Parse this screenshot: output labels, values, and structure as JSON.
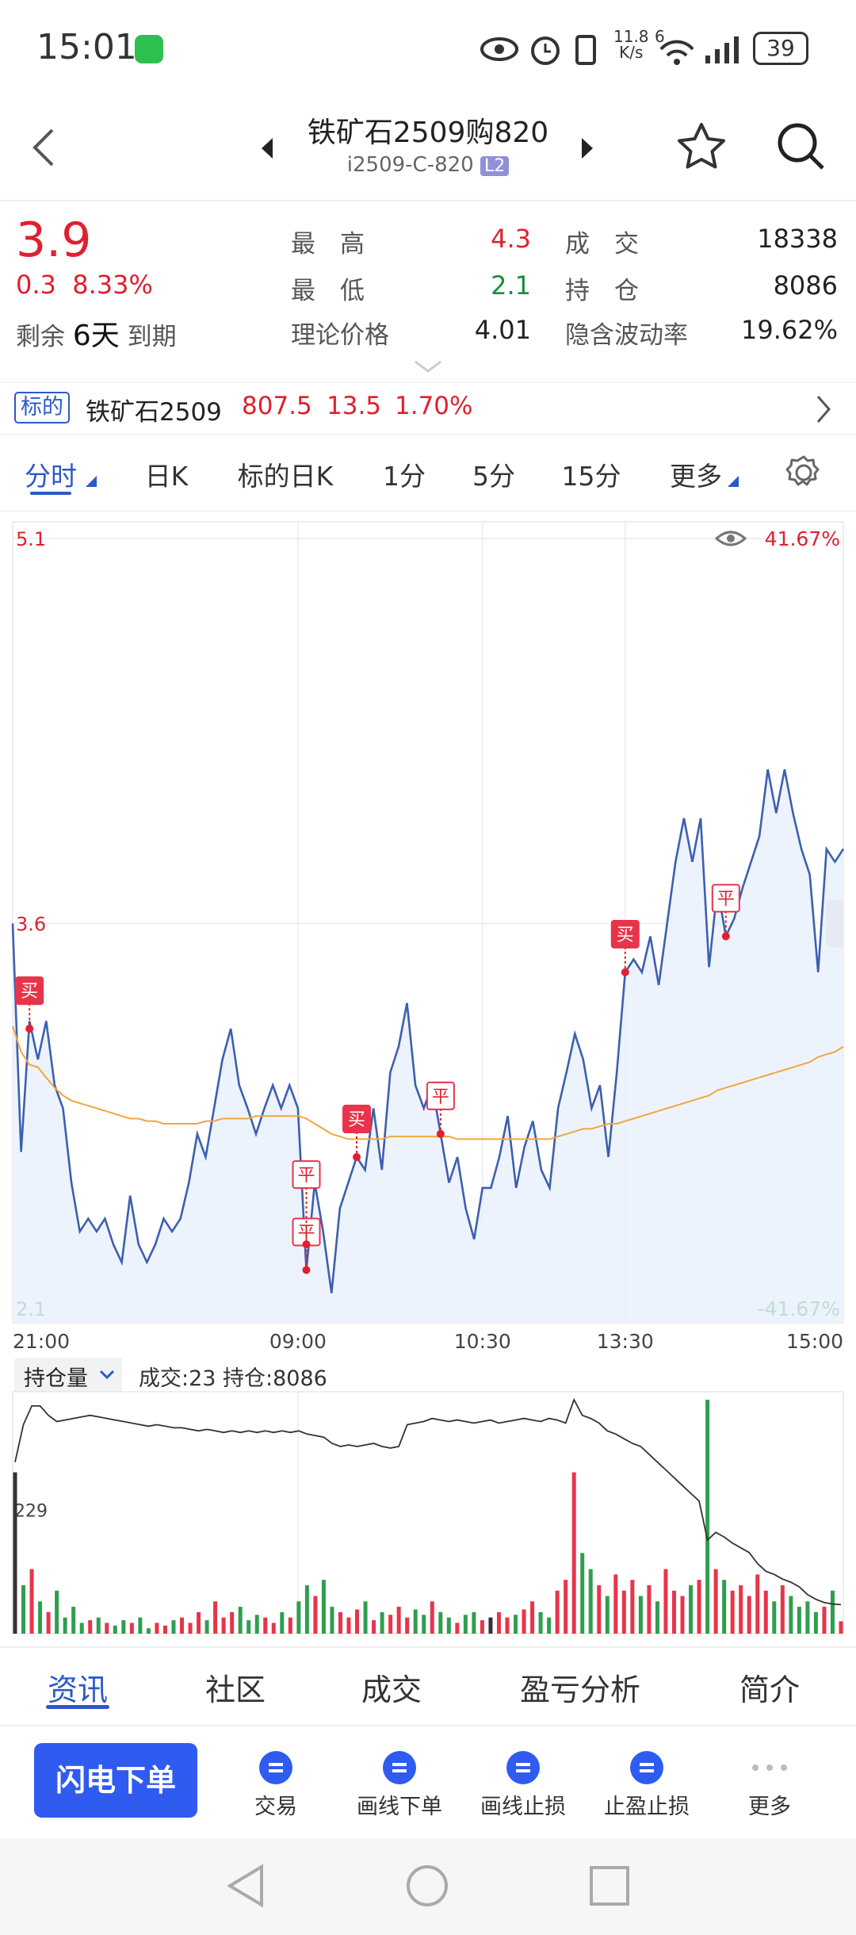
{
  "status_bar": {
    "time": "15:01",
    "speed": "11.8",
    "speed_unit": "K/s",
    "signal": "6",
    "battery": "39"
  },
  "header": {
    "title": "铁矿石2509购820",
    "code": "i2509-C-820",
    "badge": "L2"
  },
  "quote": {
    "price": "3.9",
    "change": "0.3",
    "change_pct": "8.33%",
    "remain_label": "剩余",
    "remain_days": "6天",
    "remain_suffix": "到期",
    "stats": [
      {
        "label": "最　高",
        "value": "4.3",
        "color": "#e0202f"
      },
      {
        "label": "成　交",
        "value": "18338",
        "color": "#222222"
      },
      {
        "label": "最　低",
        "value": "2.1",
        "color": "#1f8a3c"
      },
      {
        "label": "持　仓",
        "value": "8086",
        "color": "#222222"
      },
      {
        "label": "理论价格",
        "value": "4.01",
        "color": "#222222"
      },
      {
        "label": "隐含波动率",
        "value": "19.62%",
        "color": "#222222"
      }
    ]
  },
  "underlying": {
    "tag": "标的",
    "name": "铁矿石2509",
    "price": "807.5",
    "change": "13.5",
    "change_pct": "1.70%"
  },
  "period_tabs": {
    "items": [
      "分时",
      "日K",
      "标的日K",
      "1分",
      "5分",
      "15分",
      "更多"
    ],
    "active": 0
  },
  "chart_data": [
    {
      "type": "line",
      "xlim": [
        0,
        99
      ],
      "xticks": [
        {
          "value": 0,
          "label": "21:00"
        },
        {
          "value": 34,
          "label": "09:00"
        },
        {
          "value": 56,
          "label": "10:30"
        },
        {
          "value": 73,
          "label": "13:30"
        },
        {
          "value": 99,
          "label": "15:00"
        }
      ],
      "ylim": [
        2.1,
        5.1
      ],
      "yticks": [
        2.1,
        3.6,
        5.1
      ],
      "y2lim": [
        -41.67,
        41.67
      ],
      "y2ticks": [
        {
          "value": -41.67,
          "label": "-41.67%"
        },
        {
          "value": 41.67,
          "label": "41.67%"
        }
      ],
      "grid": true,
      "series": [
        {
          "color": "#3d5fb0",
          "area": true,
          "values": [
            3.6,
            2.71,
            3.22,
            3.07,
            3.22,
            2.97,
            2.88,
            2.59,
            2.4,
            2.45,
            2.4,
            2.45,
            2.35,
            2.28,
            2.54,
            2.35,
            2.28,
            2.35,
            2.45,
            2.4,
            2.45,
            2.59,
            2.78,
            2.69,
            2.88,
            3.07,
            3.19,
            2.97,
            2.88,
            2.78,
            2.88,
            2.97,
            2.88,
            2.97,
            2.88,
            2.25,
            2.59,
            2.4,
            2.16,
            2.49,
            2.59,
            2.69,
            2.64,
            2.88,
            2.64,
            3.02,
            3.12,
            3.29,
            2.97,
            2.88,
            2.97,
            2.78,
            2.59,
            2.69,
            2.49,
            2.37,
            2.57,
            2.57,
            2.69,
            2.85,
            2.57,
            2.73,
            2.83,
            2.64,
            2.57,
            2.88,
            3.02,
            3.17,
            3.07,
            2.88,
            2.97,
            2.69,
            3.02,
            3.41,
            3.46,
            3.41,
            3.55,
            3.36,
            3.6,
            3.84,
            4.01,
            3.84,
            4.01,
            3.43,
            3.74,
            3.55,
            3.62,
            3.74,
            3.84,
            3.94,
            4.2,
            4.03,
            4.2,
            4.03,
            3.89,
            3.79,
            3.41,
            3.89,
            3.84,
            3.89
          ]
        },
        {
          "color": "#f0a640",
          "values": [
            3.2,
            3.1,
            3.05,
            3.04,
            3.0,
            2.96,
            2.93,
            2.91,
            2.9,
            2.89,
            2.88,
            2.87,
            2.86,
            2.85,
            2.84,
            2.84,
            2.83,
            2.83,
            2.82,
            2.82,
            2.82,
            2.82,
            2.82,
            2.83,
            2.83,
            2.84,
            2.84,
            2.84,
            2.84,
            2.85,
            2.85,
            2.85,
            2.85,
            2.85,
            2.85,
            2.84,
            2.82,
            2.8,
            2.78,
            2.77,
            2.76,
            2.76,
            2.76,
            2.76,
            2.76,
            2.77,
            2.77,
            2.77,
            2.77,
            2.77,
            2.77,
            2.77,
            2.77,
            2.76,
            2.76,
            2.76,
            2.76,
            2.76,
            2.76,
            2.76,
            2.76,
            2.76,
            2.76,
            2.76,
            2.76,
            2.77,
            2.78,
            2.79,
            2.8,
            2.8,
            2.81,
            2.82,
            2.82,
            2.83,
            2.84,
            2.85,
            2.86,
            2.87,
            2.88,
            2.89,
            2.9,
            2.91,
            2.92,
            2.93,
            2.95,
            2.96,
            2.97,
            2.98,
            2.99,
            3.0,
            3.01,
            3.02,
            3.03,
            3.04,
            3.05,
            3.06,
            3.08,
            3.09,
            3.1,
            3.12
          ]
        }
      ],
      "annotations": [
        {
          "text": "买",
          "filled": true,
          "x": 2,
          "y": 3.19
        },
        {
          "text": "平",
          "filled": false,
          "x": 35,
          "y": 2.25
        },
        {
          "text": "平",
          "filled": false,
          "x": 35,
          "y": 2.35
        },
        {
          "text": "买",
          "filled": true,
          "x": 41,
          "y": 2.69
        },
        {
          "text": "平",
          "filled": false,
          "x": 51,
          "y": 2.78
        },
        {
          "text": "买",
          "filled": true,
          "x": 73,
          "y": 3.41
        },
        {
          "text": "平",
          "filled": false,
          "x": 85,
          "y": 3.55
        }
      ]
    },
    {
      "type": "bar",
      "selector": "持仓量",
      "subtitle": "成交:23 持仓:8086",
      "xlim": [
        0,
        99
      ],
      "ylim": [
        0,
        435
      ],
      "yticks": [
        229
      ],
      "y2lim": [
        7900,
        9400
      ],
      "colors": {
        "up": "#e8344a",
        "down": "#2e9e4f",
        "flat": "#333333"
      },
      "series": [
        {
          "values": [
            300,
            90,
            120,
            60,
            40,
            80,
            30,
            50,
            20,
            25,
            30,
            20,
            15,
            25,
            20,
            30,
            10,
            20,
            15,
            25,
            30,
            20,
            40,
            25,
            60,
            30,
            40,
            50,
            25,
            35,
            30,
            20,
            40,
            30,
            60,
            90,
            70,
            100,
            50,
            40,
            30,
            45,
            60,
            25,
            40,
            35,
            50,
            30,
            45,
            35,
            60,
            40,
            30,
            20,
            35,
            40,
            25,
            30,
            40,
            30,
            35,
            45,
            60,
            40,
            30,
            80,
            100,
            300,
            150,
            120,
            90,
            70,
            110,
            80,
            100,
            70,
            90,
            60,
            120,
            80,
            70,
            90,
            100,
            435,
            120,
            100,
            80,
            90,
            70,
            110,
            80,
            60,
            90,
            70,
            50,
            60,
            40,
            50,
            80,
            23
          ]
        },
        {
          "type": "line",
          "axis": "y2",
          "color": "#333333",
          "values": [
            9000,
            9240,
            9360,
            9360,
            9300,
            9260,
            9270,
            9280,
            9290,
            9300,
            9290,
            9280,
            9270,
            9260,
            9250,
            9240,
            9230,
            9240,
            9230,
            9220,
            9220,
            9210,
            9200,
            9210,
            9200,
            9190,
            9200,
            9190,
            9200,
            9190,
            9200,
            9190,
            9200,
            9190,
            9200,
            9180,
            9170,
            9160,
            9120,
            9100,
            9110,
            9100,
            9110,
            9120,
            9100,
            9090,
            9100,
            9240,
            9250,
            9260,
            9280,
            9270,
            9260,
            9270,
            9260,
            9250,
            9260,
            9270,
            9250,
            9260,
            9270,
            9280,
            9270,
            9260,
            9280,
            9270,
            9250,
            9400,
            9300,
            9280,
            9250,
            9200,
            9180,
            9150,
            9120,
            9100,
            9050,
            9000,
            8950,
            8900,
            8850,
            8800,
            8750,
            8500,
            8550,
            8520,
            8480,
            8450,
            8420,
            8350,
            8300,
            8280,
            8250,
            8230,
            8200,
            8150,
            8120,
            8100,
            8090,
            8086
          ]
        }
      ]
    }
  ],
  "bottom_tabs": {
    "items": [
      "资讯",
      "社区",
      "成交",
      "盈亏分析",
      "简介"
    ],
    "active": 0
  },
  "toolbar": {
    "primary": "闪电下单",
    "items": [
      "交易",
      "画线下单",
      "画线止损",
      "止盈止损",
      "更多"
    ]
  }
}
